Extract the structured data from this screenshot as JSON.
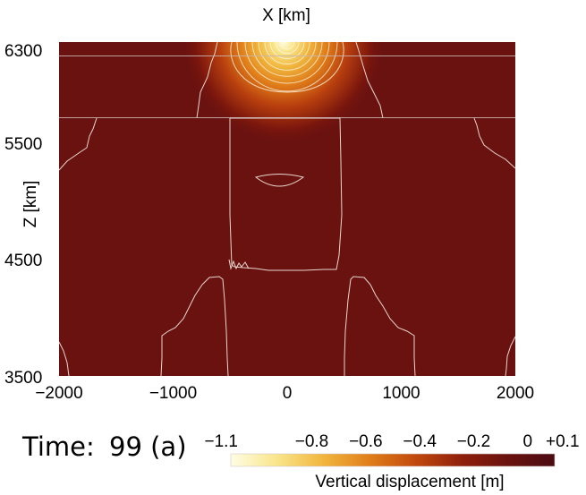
{
  "chart_data": {
    "type": "heatmap",
    "title": "",
    "xlabel": "X [km]",
    "ylabel": "Z [km]",
    "xlim": [
      -2000,
      2000
    ],
    "ylim": [
      3500,
      6370
    ],
    "x_ticks": [
      -2000,
      -1000,
      0,
      1000,
      2000
    ],
    "x_tick_labels": [
      "−2000",
      "−1000",
      "0",
      "1000",
      "2000"
    ],
    "y_ticks": [
      3500,
      4500,
      5500,
      6300
    ],
    "y_tick_labels": [
      "3500",
      "4500",
      "5500",
      "6300"
    ],
    "interfaces_z": [
      6250,
      5720
    ],
    "anomaly": {
      "x": 0,
      "z": 6370,
      "peak_value": -1.1
    },
    "background_value": 0.1,
    "inner_block": {
      "x_range": [
        -520,
        460
      ],
      "z_range": [
        4440,
        5720
      ]
    },
    "colorbar": {
      "label": "Vertical displacement [m]",
      "range": [
        -1.1,
        0.1
      ],
      "tick_values": [
        -1.1,
        -0.8,
        -0.6,
        -0.4,
        -0.2,
        0,
        0.1
      ],
      "tick_labels": [
        "−1.1",
        "−0.8",
        "−0.6",
        "−0.4",
        "−0.2",
        "0",
        "+0.1"
      ],
      "colors": [
        "#fffde4",
        "#f9e58a",
        "#f1b53d",
        "#e07e1a",
        "#c1490d",
        "#8e1f0b",
        "#6a1210",
        "#4a0b12"
      ]
    }
  },
  "time_label": "Time:",
  "time_value": "99 (a)"
}
